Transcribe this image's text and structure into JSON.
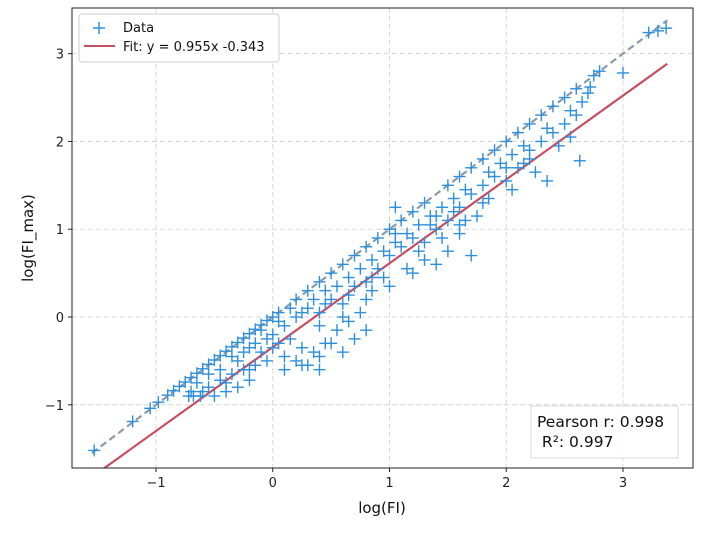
{
  "chart_data": {
    "type": "scatter",
    "xlabel": "log(FI)",
    "ylabel": "log(FI_max)",
    "xlim": [
      -1.72,
      3.6
    ],
    "ylim": [
      -1.72,
      3.52
    ],
    "xticks": [
      -1,
      0,
      1,
      2,
      3
    ],
    "yticks": [
      -1,
      0,
      1,
      2,
      3
    ],
    "xtick_labels": [
      "−1",
      "0",
      "1",
      "2",
      "3"
    ],
    "ytick_labels": [
      "−1",
      "0",
      "1",
      "2",
      "3"
    ],
    "grid": true,
    "legend": {
      "placement": "top-left",
      "entries": [
        {
          "label": "Data",
          "marker": "+",
          "color": "#2e8fdd"
        },
        {
          "label": "Fit: y = 0.955x -0.343",
          "marker": "line",
          "color": "#c44e62"
        }
      ]
    },
    "fit": {
      "slope": 0.955,
      "intercept": -0.343,
      "x_range": [
        -1.72,
        3.38
      ],
      "color": "#c44e62"
    },
    "identity_line": {
      "x_range": [
        -1.55,
        3.38
      ],
      "color": "#8a9aa8"
    },
    "scatter": {
      "color": "#2e8fdd",
      "points": [
        [
          -1.53,
          -1.52
        ],
        [
          -1.2,
          -1.19
        ],
        [
          -1.05,
          -1.04
        ],
        [
          -0.98,
          -0.97
        ],
        [
          -0.9,
          -0.89
        ],
        [
          -0.85,
          -0.84
        ],
        [
          -0.8,
          -0.79
        ],
        [
          -0.75,
          -0.74
        ],
        [
          -0.7,
          -0.69
        ],
        [
          -0.65,
          -0.64
        ],
        [
          -0.6,
          -0.59
        ],
        [
          -0.55,
          -0.54
        ],
        [
          -0.5,
          -0.49
        ],
        [
          -0.45,
          -0.44
        ],
        [
          -0.4,
          -0.39
        ],
        [
          -0.35,
          -0.34
        ],
        [
          -0.3,
          -0.29
        ],
        [
          -0.25,
          -0.24
        ],
        [
          -0.2,
          -0.19
        ],
        [
          -0.15,
          -0.14
        ],
        [
          -0.1,
          -0.09
        ],
        [
          -0.05,
          -0.04
        ],
        [
          0.0,
          0.0
        ],
        [
          0.05,
          0.05
        ],
        [
          -0.72,
          -0.9
        ],
        [
          -0.6,
          -0.85
        ],
        [
          -0.5,
          -0.9
        ],
        [
          -0.4,
          -0.85
        ],
        [
          -0.3,
          -0.8
        ],
        [
          -0.2,
          -0.72
        ],
        [
          -0.62,
          -0.9
        ],
        [
          -0.55,
          -0.8
        ],
        [
          -0.45,
          -0.72
        ],
        [
          -0.35,
          -0.65
        ],
        [
          -0.25,
          -0.6
        ],
        [
          -0.15,
          -0.55
        ],
        [
          -0.1,
          -0.4
        ],
        [
          0.0,
          -0.35
        ],
        [
          0.1,
          -0.45
        ],
        [
          0.2,
          -0.5
        ],
        [
          0.3,
          -0.55
        ],
        [
          0.4,
          -0.45
        ],
        [
          0.5,
          -0.3
        ],
        [
          0.6,
          -0.4
        ],
        [
          0.7,
          -0.25
        ],
        [
          0.8,
          -0.15
        ],
        [
          -0.3,
          -0.5
        ],
        [
          -0.2,
          -0.35
        ],
        [
          0.0,
          -0.2
        ],
        [
          0.1,
          -0.1
        ],
        [
          0.2,
          0.0
        ],
        [
          0.3,
          0.1
        ],
        [
          0.4,
          0.05
        ],
        [
          0.5,
          0.2
        ],
        [
          0.6,
          0.15
        ],
        [
          0.7,
          0.35
        ],
        [
          0.8,
          0.4
        ],
        [
          0.9,
          0.55
        ],
        [
          1.0,
          0.7
        ],
        [
          1.1,
          0.8
        ],
        [
          0.2,
          0.2
        ],
        [
          0.3,
          0.3
        ],
        [
          0.4,
          0.4
        ],
        [
          0.5,
          0.5
        ],
        [
          0.6,
          0.6
        ],
        [
          0.7,
          0.7
        ],
        [
          0.8,
          0.8
        ],
        [
          0.9,
          0.9
        ],
        [
          1.0,
          1.0
        ],
        [
          1.1,
          1.1
        ],
        [
          1.2,
          1.2
        ],
        [
          1.3,
          1.3
        ],
        [
          0.4,
          -0.1
        ],
        [
          0.6,
          0.0
        ],
        [
          0.8,
          0.2
        ],
        [
          1.0,
          0.35
        ],
        [
          1.2,
          0.5
        ],
        [
          1.4,
          0.6
        ],
        [
          1.3,
          0.85
        ],
        [
          1.4,
          1.0
        ],
        [
          1.5,
          1.1
        ],
        [
          1.6,
          1.25
        ],
        [
          1.7,
          1.4
        ],
        [
          1.8,
          1.5
        ],
        [
          1.5,
          1.5
        ],
        [
          1.6,
          1.6
        ],
        [
          1.7,
          1.7
        ],
        [
          1.8,
          1.8
        ],
        [
          1.9,
          1.9
        ],
        [
          2.0,
          2.0
        ],
        [
          1.2,
          0.9
        ],
        [
          1.4,
          1.15
        ],
        [
          1.6,
          1.05
        ],
        [
          1.8,
          1.3
        ],
        [
          2.0,
          1.55
        ],
        [
          2.1,
          1.7
        ],
        [
          2.1,
          2.1
        ],
        [
          2.2,
          2.2
        ],
        [
          2.3,
          2.3
        ],
        [
          2.4,
          2.4
        ],
        [
          2.5,
          2.5
        ],
        [
          2.6,
          2.6
        ],
        [
          2.2,
          1.9
        ],
        [
          2.3,
          2.0
        ],
        [
          2.4,
          2.1
        ],
        [
          2.5,
          2.2
        ],
        [
          2.6,
          2.3
        ],
        [
          2.7,
          2.55
        ],
        [
          2.8,
          2.8
        ],
        [
          3.0,
          2.78
        ],
        [
          3.22,
          3.24
        ],
        [
          3.3,
          3.26
        ],
        [
          3.37,
          3.29
        ],
        [
          2.75,
          2.75
        ],
        [
          1.05,
          1.25
        ],
        [
          1.35,
          1.05
        ],
        [
          1.55,
          1.35
        ],
        [
          1.75,
          1.15
        ],
        [
          1.9,
          1.6
        ],
        [
          2.05,
          1.45
        ],
        [
          2.15,
          1.75
        ],
        [
          2.25,
          1.65
        ],
        [
          2.45,
          1.95
        ],
        [
          2.55,
          2.05
        ],
        [
          2.63,
          1.78
        ],
        [
          2.35,
          1.55
        ],
        [
          1.6,
          0.95
        ],
        [
          1.7,
          0.7
        ],
        [
          1.5,
          0.75
        ],
        [
          1.3,
          0.65
        ],
        [
          1.15,
          0.55
        ],
        [
          0.95,
          0.45
        ],
        [
          0.85,
          0.3
        ],
        [
          0.75,
          0.05
        ],
        [
          0.65,
          -0.05
        ],
        [
          0.55,
          -0.15
        ],
        [
          0.45,
          -0.3
        ],
        [
          0.35,
          -0.4
        ],
        [
          0.25,
          -0.35
        ],
        [
          0.15,
          -0.25
        ],
        [
          0.05,
          -0.3
        ],
        [
          -0.05,
          -0.25
        ],
        [
          -0.15,
          -0.3
        ],
        [
          -0.25,
          -0.4
        ],
        [
          -0.35,
          -0.45
        ],
        [
          -0.45,
          -0.6
        ],
        [
          -0.55,
          -0.65
        ],
        [
          -0.65,
          -0.75
        ],
        [
          -0.7,
          -0.85
        ],
        [
          -0.68,
          -0.9
        ],
        [
          1.05,
          0.95
        ],
        [
          1.25,
          1.05
        ],
        [
          1.45,
          1.25
        ],
        [
          1.65,
          1.45
        ],
        [
          1.85,
          1.65
        ],
        [
          2.05,
          1.85
        ],
        [
          0.55,
          0.35
        ],
        [
          0.75,
          0.55
        ],
        [
          0.95,
          0.75
        ],
        [
          1.15,
          0.95
        ],
        [
          1.35,
          1.15
        ],
        [
          1.55,
          1.2
        ],
        [
          0.15,
          0.1
        ],
        [
          0.35,
          0.2
        ],
        [
          0.45,
          0.3
        ],
        [
          0.65,
          0.45
        ],
        [
          0.85,
          0.65
        ],
        [
          1.05,
          0.85
        ],
        [
          -0.1,
          -0.15
        ],
        [
          0.05,
          -0.05
        ],
        [
          0.25,
          0.05
        ],
        [
          0.45,
          0.15
        ],
        [
          0.65,
          0.25
        ],
        [
          0.85,
          0.45
        ],
        [
          1.95,
          1.75
        ],
        [
          2.15,
          1.95
        ],
        [
          2.35,
          2.15
        ],
        [
          2.55,
          2.35
        ],
        [
          2.65,
          2.45
        ],
        [
          2.72,
          2.62
        ],
        [
          1.25,
          0.75
        ],
        [
          1.45,
          0.9
        ],
        [
          1.65,
          1.1
        ],
        [
          1.85,
          1.35
        ],
        [
          2.0,
          1.7
        ],
        [
          2.2,
          1.8
        ],
        [
          -0.05,
          -0.5
        ],
        [
          0.1,
          -0.6
        ],
        [
          0.25,
          -0.55
        ],
        [
          0.4,
          -0.6
        ],
        [
          -0.2,
          -0.6
        ],
        [
          -0.4,
          -0.75
        ]
      ]
    }
  },
  "stats_box": {
    "pearson": "Pearson r: 0.998",
    "r2": " R²: 0.997"
  }
}
